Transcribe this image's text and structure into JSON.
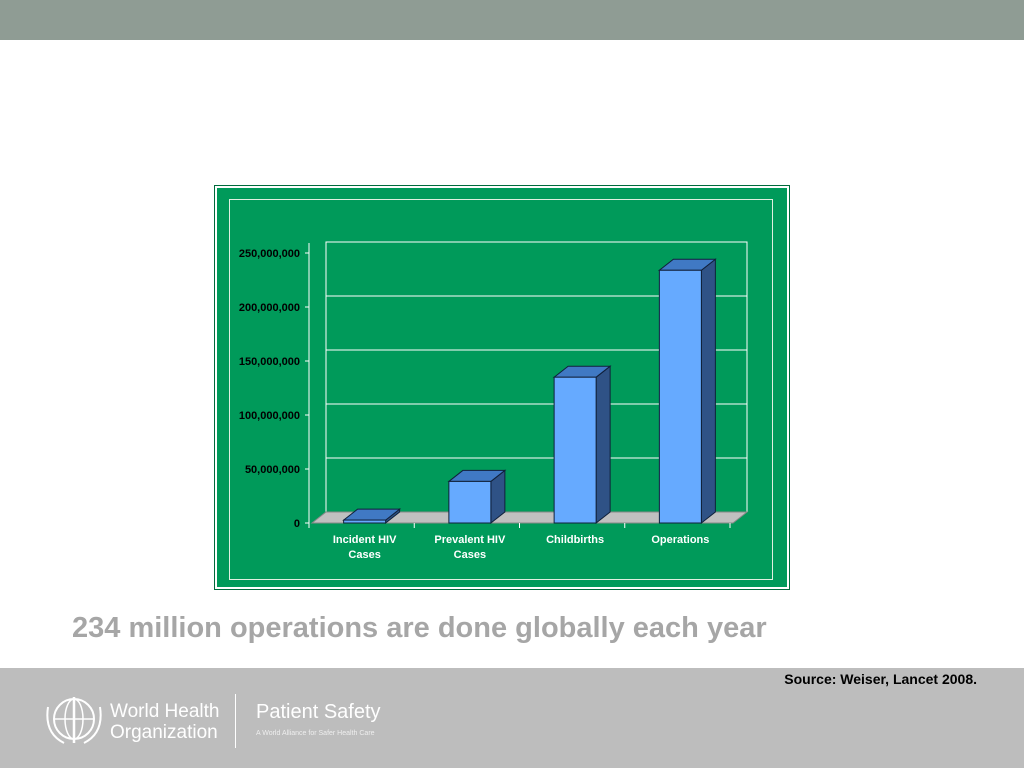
{
  "chart_data": {
    "type": "bar",
    "categories": [
      "Incident HIV Cases",
      "Prevalent HIV Cases",
      "Childbirths",
      "Operations"
    ],
    "values": [
      2700000,
      38500000,
      135000000,
      234000000
    ],
    "color": "#66aaff",
    "ylim": [
      0,
      250000000
    ],
    "yticks": [
      0,
      {
        "value": 50000000,
        "label": "50,000,000"
      },
      {
        "value": 100000000,
        "label": "100,000,000"
      },
      {
        "value": 150000000,
        "label": "150,000,000"
      },
      {
        "value": 200000000,
        "label": "200,000,000"
      },
      {
        "value": 250000000,
        "label": "250,000,000"
      }
    ],
    "grid": true
  },
  "slide": {
    "headline": "234 million operations are done globally each year",
    "source": "Source: Weiser, Lancet 2008.",
    "org_line1": "World Health",
    "org_line2": "Organization",
    "program": "Patient Safety",
    "tagline": "A World Alliance for Safer Health Care"
  }
}
